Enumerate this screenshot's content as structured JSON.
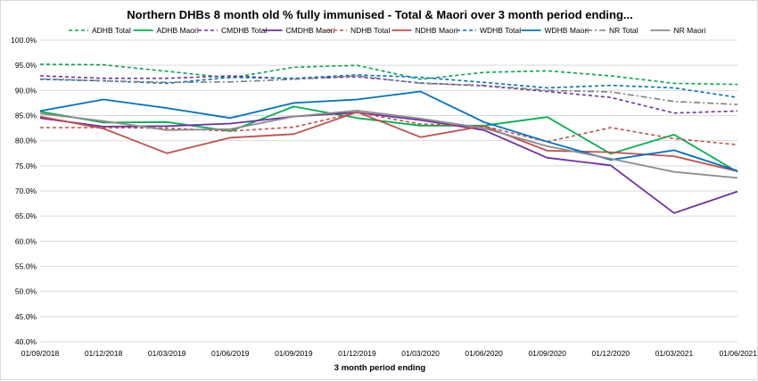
{
  "chart_data": {
    "type": "line",
    "title": "Northern DHBs 8 month old % fully immunised - Total & Maori over 3 month period ending...",
    "xlabel": "3 month period ending",
    "ylabel": "",
    "x": [
      "01/09/2018",
      "01/12/2018",
      "01/03/2019",
      "01/06/2019",
      "01/09/2019",
      "01/12/2019",
      "01/03/2020",
      "01/06/2020",
      "01/09/2020",
      "01/12/2020",
      "01/03/2021",
      "01/06/2021"
    ],
    "ylim": [
      40,
      100
    ],
    "yticks": [
      "40.0%",
      "45.0%",
      "50.0%",
      "55.0%",
      "60.0%",
      "65.0%",
      "70.0%",
      "75.0%",
      "80.0%",
      "85.0%",
      "90.0%",
      "95.0%",
      "100.0%"
    ],
    "grid": "horizontal",
    "legend_position": "top",
    "series": [
      {
        "name": "ADHB Total",
        "color": "#00a651",
        "dash": "dashed",
        "values": [
          95.2,
          95.1,
          93.8,
          92.5,
          94.6,
          95.0,
          92.2,
          93.6,
          93.9,
          92.9,
          91.4,
          91.2
        ]
      },
      {
        "name": "ADHB Maori",
        "color": "#00b050",
        "dash": "solid",
        "values": [
          85.8,
          83.6,
          83.7,
          81.9,
          86.8,
          84.5,
          83.0,
          83.0,
          84.7,
          77.4,
          81.2,
          73.8
        ]
      },
      {
        "name": "CMDHB Total",
        "color": "#7030a0",
        "dash": "dashed",
        "values": [
          92.9,
          92.4,
          92.4,
          92.9,
          92.3,
          92.7,
          91.5,
          90.9,
          89.8,
          88.6,
          85.5,
          85.9
        ]
      },
      {
        "name": "CMDHB Maori",
        "color": "#7030a0",
        "dash": "solid",
        "values": [
          84.5,
          82.8,
          82.9,
          83.4,
          84.8,
          85.6,
          84.1,
          82.1,
          76.6,
          75.1,
          65.6,
          69.9
        ]
      },
      {
        "name": "NDHB Total",
        "color": "#c0504d",
        "dash": "dashed",
        "values": [
          82.6,
          82.6,
          82.5,
          81.9,
          82.7,
          85.6,
          83.3,
          82.9,
          79.8,
          82.6,
          80.4,
          79.2
        ]
      },
      {
        "name": "NDHB Maori",
        "color": "#c0504d",
        "dash": "solid",
        "values": [
          84.8,
          82.4,
          77.5,
          80.6,
          81.3,
          85.7,
          80.7,
          82.9,
          78.0,
          77.7,
          76.9,
          73.9
        ]
      },
      {
        "name": "WDHB Total",
        "color": "#0070c0",
        "dash": "dashed",
        "values": [
          92.2,
          91.9,
          91.4,
          92.6,
          92.4,
          93.1,
          92.6,
          91.6,
          90.5,
          91.0,
          90.5,
          88.6
        ]
      },
      {
        "name": "WDHB Maori",
        "color": "#0070c0",
        "dash": "solid",
        "values": [
          85.9,
          88.2,
          86.5,
          84.5,
          87.5,
          88.2,
          89.8,
          83.7,
          79.8,
          76.2,
          78.1,
          74.0
        ]
      },
      {
        "name": "NR Total",
        "color": "#7f7f7f",
        "dash": "dashdot",
        "values": [
          92.3,
          91.9,
          91.6,
          91.7,
          92.2,
          92.9,
          91.4,
          91.0,
          90.0,
          89.7,
          87.8,
          87.2
        ]
      },
      {
        "name": "NR Maori",
        "color": "#8c8c8c",
        "dash": "solid",
        "values": [
          85.4,
          83.9,
          82.1,
          82.3,
          84.8,
          86.0,
          84.4,
          82.5,
          78.9,
          76.4,
          73.8,
          72.6
        ]
      }
    ]
  }
}
